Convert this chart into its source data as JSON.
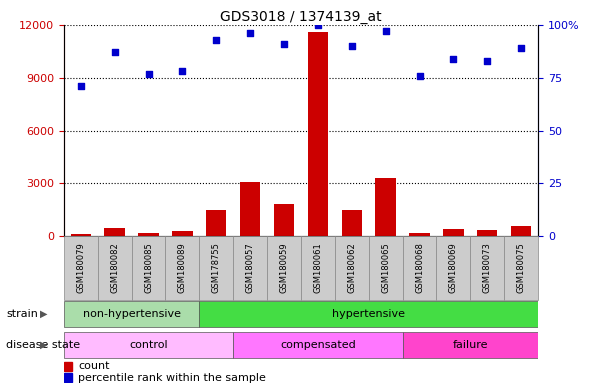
{
  "title": "GDS3018 / 1374139_at",
  "samples": [
    "GSM180079",
    "GSM180082",
    "GSM180085",
    "GSM180089",
    "GSM178755",
    "GSM180057",
    "GSM180059",
    "GSM180061",
    "GSM180062",
    "GSM180065",
    "GSM180068",
    "GSM180069",
    "GSM180073",
    "GSM180075"
  ],
  "counts": [
    150,
    450,
    200,
    300,
    1500,
    3050,
    1800,
    11600,
    1500,
    3300,
    200,
    400,
    350,
    600
  ],
  "percentile_ranks": [
    71,
    87,
    77,
    78,
    93,
    96,
    91,
    100,
    90,
    97,
    76,
    84,
    83,
    89
  ],
  "ylim_left": [
    0,
    12000
  ],
  "ylim_right": [
    0,
    100
  ],
  "yticks_left": [
    0,
    3000,
    6000,
    9000,
    12000
  ],
  "yticks_right": [
    0,
    25,
    50,
    75,
    100
  ],
  "bar_color": "#cc0000",
  "dot_color": "#0000cc",
  "strain_groups": [
    {
      "label": "non-hypertensive",
      "start": 0,
      "end": 4,
      "color": "#aaddaa"
    },
    {
      "label": "hypertensive",
      "start": 4,
      "end": 14,
      "color": "#44dd44"
    }
  ],
  "disease_groups": [
    {
      "label": "control",
      "start": 0,
      "end": 5,
      "color": "#ffbbff"
    },
    {
      "label": "compensated",
      "start": 5,
      "end": 10,
      "color": "#ff77ff"
    },
    {
      "label": "failure",
      "start": 10,
      "end": 14,
      "color": "#ff44cc"
    }
  ],
  "legend_count_label": "count",
  "legend_pct_label": "percentile rank within the sample",
  "tick_bg_color": "#cccccc",
  "bar_width": 0.6,
  "label_left": "strain",
  "label_disease": "disease state"
}
